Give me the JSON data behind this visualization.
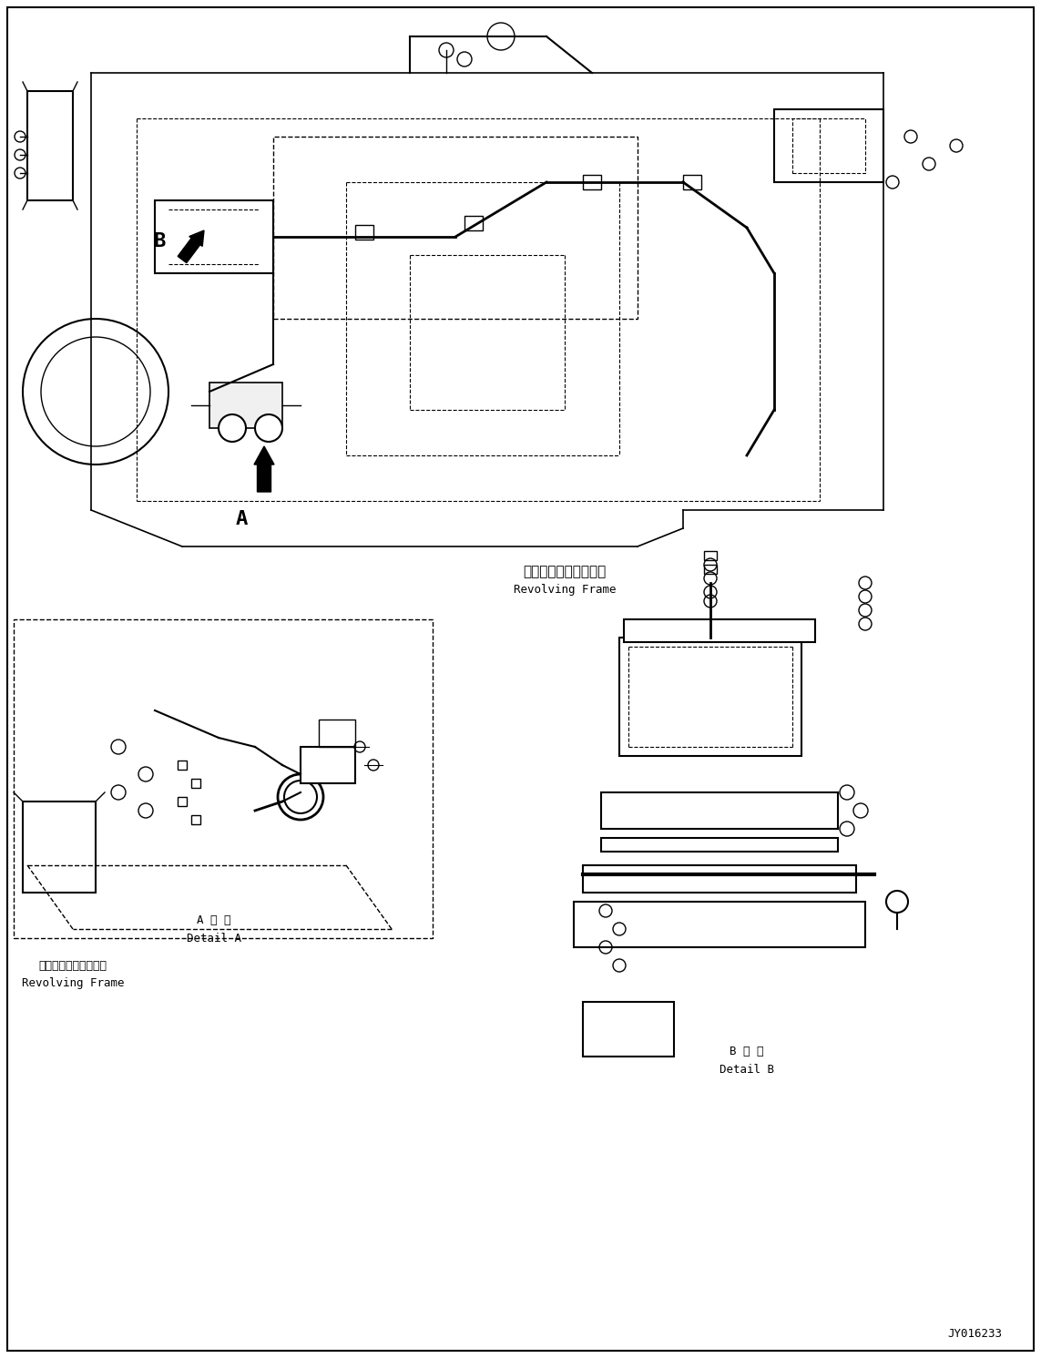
{
  "figsize": [
    11.43,
    14.91
  ],
  "dpi": 100,
  "bg_color": "#ffffff",
  "border_color": "#000000",
  "line_color": "#000000",
  "title_parts_number": "JY016233",
  "labels": {
    "revolving_frame_jp_1": "レボルビングフレーム",
    "revolving_frame_en_1": "Revolving Frame",
    "revolving_frame_jp_2": "レボルビングフレーム",
    "revolving_frame_en_2": "Revolving Frame",
    "detail_a_jp": "A 詳 細",
    "detail_a_en": "Detail A",
    "detail_b_jp": "B 詳 細",
    "detail_b_en": "Detail B",
    "label_a": "A",
    "label_b": "B"
  },
  "font_sizes": {
    "label_large": 14,
    "label_medium": 11,
    "label_small": 9,
    "part_number": 10
  }
}
